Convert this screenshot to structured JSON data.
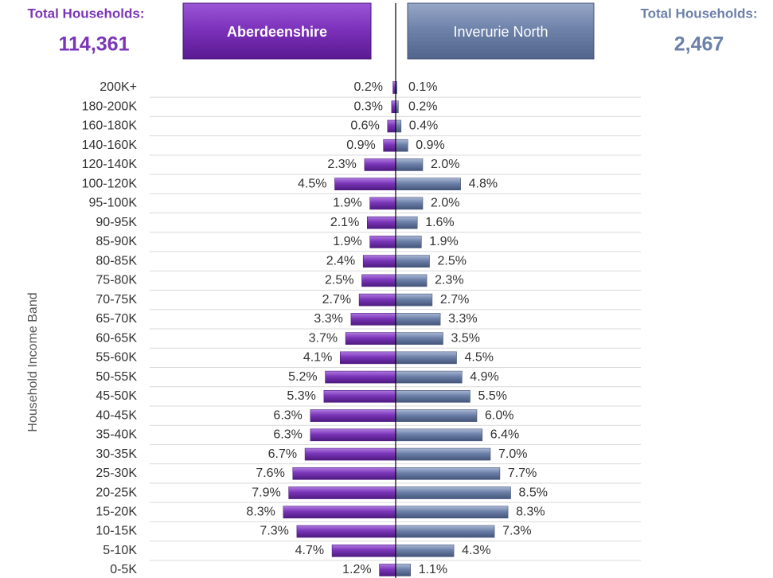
{
  "chart_data": {
    "type": "butterfly",
    "y_label": "Household Income Band",
    "categories": [
      "200K+",
      "180-200K",
      "160-180K",
      "140-160K",
      "120-140K",
      "100-120K",
      "95-100K",
      "90-95K",
      "85-90K",
      "80-85K",
      "75-80K",
      "70-75K",
      "65-70K",
      "60-65K",
      "55-60K",
      "50-55K",
      "45-50K",
      "40-45K",
      "35-40K",
      "30-35K",
      "25-30K",
      "20-25K",
      "15-20K",
      "10-15K",
      "5-10K",
      "0-5K"
    ],
    "series": [
      {
        "name": "Aberdeenshire",
        "color": "#7a35b8",
        "side": "left",
        "total_label": "Total Households:",
        "total": {
          "value": 114361,
          "label": "114,361"
        },
        "values": [
          0.2,
          0.3,
          0.6,
          0.9,
          2.3,
          4.5,
          1.9,
          2.1,
          1.9,
          2.4,
          2.5,
          2.7,
          3.3,
          3.7,
          4.1,
          5.2,
          5.3,
          6.3,
          6.3,
          6.7,
          7.6,
          7.9,
          8.3,
          7.3,
          4.7,
          1.2
        ],
        "value_labels": [
          "0.2%",
          "0.3%",
          "0.6%",
          "0.9%",
          "2.3%",
          "4.5%",
          "1.9%",
          "2.1%",
          "1.9%",
          "2.4%",
          "2.5%",
          "2.7%",
          "3.3%",
          "3.7%",
          "4.1%",
          "5.2%",
          "5.3%",
          "6.3%",
          "6.3%",
          "6.7%",
          "7.6%",
          "7.9%",
          "8.3%",
          "7.3%",
          "4.7%",
          "1.2%"
        ]
      },
      {
        "name": "Inverurie North",
        "color": "#6c80a8",
        "side": "right",
        "total_label": "Total Households:",
        "total": {
          "value": 2467,
          "label": "2,467"
        },
        "values": [
          0.1,
          0.2,
          0.4,
          0.9,
          2.0,
          4.8,
          2.0,
          1.6,
          1.9,
          2.5,
          2.3,
          2.7,
          3.3,
          3.5,
          4.5,
          4.9,
          5.5,
          6.0,
          6.4,
          7.0,
          7.7,
          8.5,
          8.3,
          7.3,
          4.3,
          1.1
        ],
        "value_labels": [
          "0.1%",
          "0.2%",
          "0.4%",
          "0.9%",
          "2.0%",
          "4.8%",
          "2.0%",
          "1.6%",
          "1.9%",
          "2.5%",
          "2.3%",
          "2.7%",
          "3.3%",
          "3.5%",
          "4.5%",
          "4.9%",
          "5.5%",
          "6.0%",
          "6.4%",
          "7.0%",
          "7.7%",
          "8.5%",
          "8.3%",
          "7.3%",
          "4.3%",
          "1.1%"
        ]
      }
    ]
  }
}
